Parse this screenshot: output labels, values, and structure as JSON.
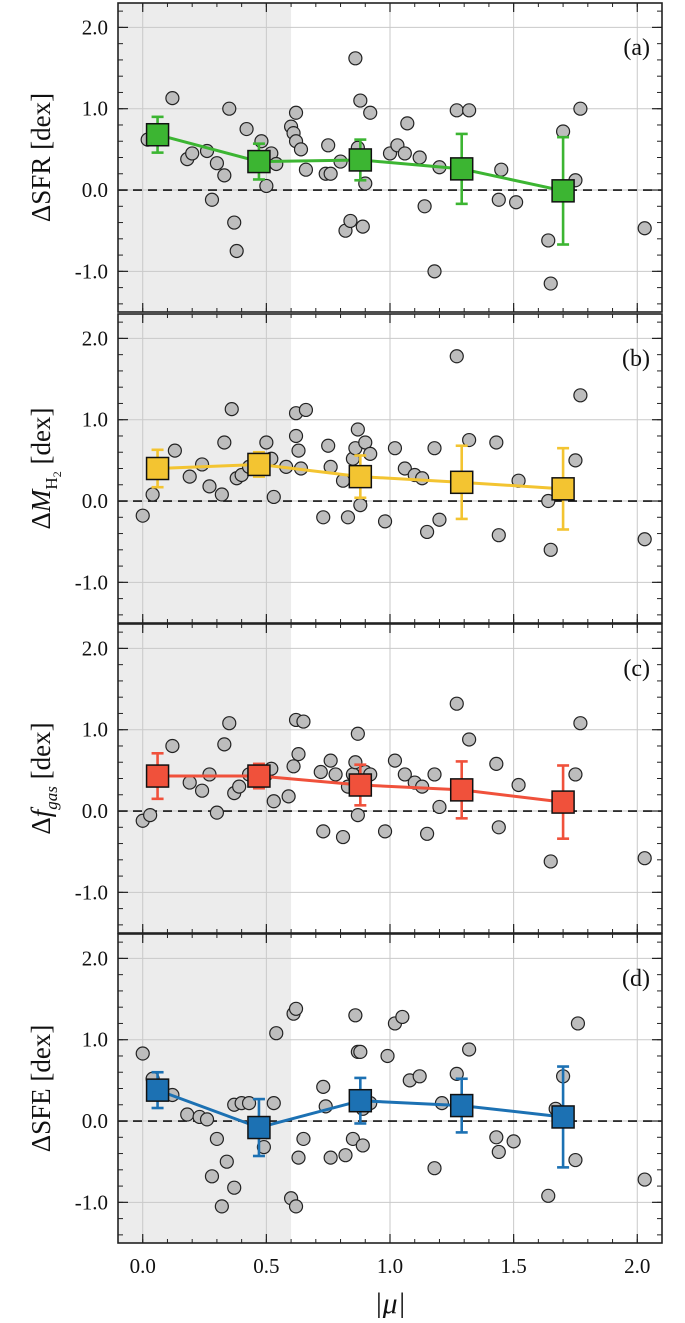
{
  "chart_data": [
    {
      "type": "scatter",
      "panel_label": "(a)",
      "ylabel": "ΔSFR [dex]",
      "xlabel": "|μ|",
      "xlim": [
        -0.1,
        2.1
      ],
      "ylim": [
        -1.5,
        2.3
      ],
      "x_ticks": [
        "0.0",
        "0.5",
        "1.0",
        "1.5",
        "2.0"
      ],
      "y_ticks": [
        "2.0",
        "1.0",
        "0.0",
        "-1.0"
      ],
      "shaded_region_x": [
        -0.1,
        0.6
      ],
      "reference_line_y": 0.0,
      "grid": true,
      "line_color": "#3cb532",
      "points": [
        [
          0.02,
          0.62
        ],
        [
          0.12,
          1.13
        ],
        [
          0.18,
          0.38
        ],
        [
          0.2,
          0.45
        ],
        [
          0.26,
          0.48
        ],
        [
          0.28,
          -0.12
        ],
        [
          0.3,
          0.33
        ],
        [
          0.33,
          0.18
        ],
        [
          0.35,
          1.0
        ],
        [
          0.37,
          -0.4
        ],
        [
          0.38,
          -0.75
        ],
        [
          0.42,
          0.75
        ],
        [
          0.48,
          0.6
        ],
        [
          0.5,
          0.05
        ],
        [
          0.52,
          0.45
        ],
        [
          0.54,
          0.32
        ],
        [
          0.6,
          0.78
        ],
        [
          0.61,
          0.7
        ],
        [
          0.62,
          0.6
        ],
        [
          0.62,
          0.95
        ],
        [
          0.64,
          0.5
        ],
        [
          0.66,
          0.25
        ],
        [
          0.74,
          0.2
        ],
        [
          0.75,
          0.55
        ],
        [
          0.76,
          0.2
        ],
        [
          0.8,
          0.35
        ],
        [
          0.82,
          -0.5
        ],
        [
          0.84,
          -0.38
        ],
        [
          0.86,
          1.62
        ],
        [
          0.87,
          0.52
        ],
        [
          0.88,
          1.1
        ],
        [
          0.89,
          -0.45
        ],
        [
          0.9,
          0.08
        ],
        [
          0.92,
          0.95
        ],
        [
          1.0,
          0.45
        ],
        [
          1.03,
          0.55
        ],
        [
          1.06,
          0.45
        ],
        [
          1.07,
          0.82
        ],
        [
          1.12,
          0.4
        ],
        [
          1.14,
          -0.2
        ],
        [
          1.18,
          -1.0
        ],
        [
          1.2,
          0.28
        ],
        [
          1.27,
          0.98
        ],
        [
          1.32,
          0.98
        ],
        [
          1.44,
          -0.12
        ],
        [
          1.45,
          0.25
        ],
        [
          1.51,
          -0.15
        ],
        [
          1.64,
          -0.62
        ],
        [
          1.65,
          -1.15
        ],
        [
          1.7,
          0.72
        ],
        [
          1.75,
          0.12
        ],
        [
          1.77,
          1.0
        ],
        [
          2.03,
          -0.47
        ]
      ],
      "binned": {
        "x": [
          0.06,
          0.47,
          0.88,
          1.29,
          1.7
        ],
        "y": [
          0.68,
          0.35,
          0.37,
          0.26,
          -0.01
        ],
        "err": [
          0.22,
          0.22,
          0.25,
          0.43,
          0.66
        ]
      }
    },
    {
      "type": "scatter",
      "panel_label": "(b)",
      "ylabel_prefix": "Δ",
      "ylabel_var": "M",
      "ylabel_sub": "H",
      "ylabel_subsub": "2",
      "ylabel_unit": "[dex]",
      "xlim": [
        -0.1,
        2.1
      ],
      "ylim": [
        -1.5,
        2.3
      ],
      "x_ticks": [
        "0.0",
        "0.5",
        "1.0",
        "1.5",
        "2.0"
      ],
      "y_ticks": [
        "2.0",
        "1.0",
        "0.0",
        "-1.0"
      ],
      "shaded_region_x": [
        -0.1,
        0.6
      ],
      "reference_line_y": 0.0,
      "grid": true,
      "line_color": "#f3c431",
      "points": [
        [
          0.0,
          -0.18
        ],
        [
          0.04,
          0.08
        ],
        [
          0.13,
          0.62
        ],
        [
          0.19,
          0.3
        ],
        [
          0.24,
          0.45
        ],
        [
          0.27,
          0.18
        ],
        [
          0.32,
          0.08
        ],
        [
          0.33,
          0.72
        ],
        [
          0.36,
          1.13
        ],
        [
          0.38,
          0.28
        ],
        [
          0.4,
          0.32
        ],
        [
          0.43,
          0.42
        ],
        [
          0.5,
          0.72
        ],
        [
          0.52,
          0.52
        ],
        [
          0.53,
          0.05
        ],
        [
          0.58,
          0.42
        ],
        [
          0.62,
          0.8
        ],
        [
          0.62,
          1.08
        ],
        [
          0.63,
          0.62
        ],
        [
          0.64,
          0.4
        ],
        [
          0.66,
          1.12
        ],
        [
          0.73,
          -0.2
        ],
        [
          0.75,
          0.68
        ],
        [
          0.76,
          0.42
        ],
        [
          0.81,
          0.25
        ],
        [
          0.83,
          -0.2
        ],
        [
          0.85,
          0.52
        ],
        [
          0.86,
          0.65
        ],
        [
          0.87,
          0.88
        ],
        [
          0.88,
          -0.05
        ],
        [
          0.9,
          0.72
        ],
        [
          0.92,
          0.58
        ],
        [
          0.98,
          -0.25
        ],
        [
          1.02,
          0.65
        ],
        [
          1.06,
          0.4
        ],
        [
          1.1,
          0.32
        ],
        [
          1.13,
          0.28
        ],
        [
          1.15,
          -0.38
        ],
        [
          1.18,
          0.65
        ],
        [
          1.2,
          -0.23
        ],
        [
          1.27,
          1.78
        ],
        [
          1.32,
          0.75
        ],
        [
          1.43,
          0.72
        ],
        [
          1.44,
          -0.42
        ],
        [
          1.52,
          0.25
        ],
        [
          1.64,
          0.0
        ],
        [
          1.65,
          -0.6
        ],
        [
          1.75,
          0.5
        ],
        [
          1.77,
          1.3
        ],
        [
          2.03,
          -0.47
        ]
      ],
      "binned": {
        "x": [
          0.06,
          0.47,
          0.88,
          1.29,
          1.7
        ],
        "y": [
          0.4,
          0.45,
          0.3,
          0.23,
          0.15
        ],
        "err": [
          0.23,
          0.15,
          0.26,
          0.45,
          0.5
        ]
      }
    },
    {
      "type": "scatter",
      "panel_label": "(c)",
      "ylabel_prefix": "Δ",
      "ylabel_var": "f",
      "ylabel_sub": "gas",
      "ylabel_unit": "[dex]",
      "xlim": [
        -0.1,
        2.1
      ],
      "ylim": [
        -1.5,
        2.3
      ],
      "x_ticks": [
        "0.0",
        "0.5",
        "1.0",
        "1.5",
        "2.0"
      ],
      "y_ticks": [
        "2.0",
        "1.0",
        "0.0",
        "-1.0"
      ],
      "shaded_region_x": [
        -0.1,
        0.6
      ],
      "reference_line_y": 0.0,
      "grid": true,
      "line_color": "#f0513b",
      "points": [
        [
          0.0,
          -0.12
        ],
        [
          0.03,
          -0.05
        ],
        [
          0.12,
          0.8
        ],
        [
          0.19,
          0.35
        ],
        [
          0.24,
          0.25
        ],
        [
          0.27,
          0.45
        ],
        [
          0.3,
          -0.02
        ],
        [
          0.33,
          0.82
        ],
        [
          0.35,
          1.08
        ],
        [
          0.37,
          0.22
        ],
        [
          0.39,
          0.3
        ],
        [
          0.43,
          0.45
        ],
        [
          0.5,
          0.45
        ],
        [
          0.52,
          0.52
        ],
        [
          0.53,
          0.12
        ],
        [
          0.59,
          0.18
        ],
        [
          0.61,
          0.55
        ],
        [
          0.62,
          1.12
        ],
        [
          0.63,
          0.7
        ],
        [
          0.65,
          1.1
        ],
        [
          0.72,
          0.48
        ],
        [
          0.73,
          -0.25
        ],
        [
          0.76,
          0.62
        ],
        [
          0.78,
          0.45
        ],
        [
          0.81,
          -0.32
        ],
        [
          0.83,
          0.3
        ],
        [
          0.85,
          0.45
        ],
        [
          0.86,
          0.6
        ],
        [
          0.87,
          0.95
        ],
        [
          0.87,
          -0.05
        ],
        [
          0.9,
          0.48
        ],
        [
          0.92,
          0.45
        ],
        [
          0.98,
          -0.25
        ],
        [
          1.02,
          0.62
        ],
        [
          1.06,
          0.45
        ],
        [
          1.1,
          0.35
        ],
        [
          1.13,
          0.3
        ],
        [
          1.15,
          -0.28
        ],
        [
          1.18,
          0.45
        ],
        [
          1.2,
          0.05
        ],
        [
          1.27,
          1.32
        ],
        [
          1.32,
          0.88
        ],
        [
          1.43,
          0.58
        ],
        [
          1.44,
          -0.2
        ],
        [
          1.52,
          0.32
        ],
        [
          1.65,
          -0.62
        ],
        [
          1.75,
          0.45
        ],
        [
          1.77,
          1.08
        ],
        [
          2.03,
          -0.58
        ]
      ],
      "binned": {
        "x": [
          0.06,
          0.47,
          0.88,
          1.29,
          1.7
        ],
        "y": [
          0.43,
          0.43,
          0.32,
          0.26,
          0.11
        ],
        "err": [
          0.28,
          0.15,
          0.25,
          0.35,
          0.45
        ]
      }
    },
    {
      "type": "scatter",
      "panel_label": "(d)",
      "ylabel": "ΔSFE [dex]",
      "xlabel": "|μ|",
      "xlim": [
        -0.1,
        2.1
      ],
      "ylim": [
        -1.5,
        2.3
      ],
      "x_ticks": [
        "0.0",
        "0.5",
        "1.0",
        "1.5",
        "2.0"
      ],
      "y_ticks": [
        "2.0",
        "1.0",
        "0.0",
        "-1.0"
      ],
      "shaded_region_x": [
        -0.1,
        0.6
      ],
      "reference_line_y": 0.0,
      "grid": true,
      "line_color": "#1c71b3",
      "points": [
        [
          0.0,
          0.83
        ],
        [
          0.04,
          0.52
        ],
        [
          0.12,
          0.32
        ],
        [
          0.18,
          0.08
        ],
        [
          0.23,
          0.05
        ],
        [
          0.26,
          0.02
        ],
        [
          0.28,
          -0.68
        ],
        [
          0.3,
          -0.22
        ],
        [
          0.32,
          -1.05
        ],
        [
          0.34,
          -0.5
        ],
        [
          0.37,
          0.2
        ],
        [
          0.37,
          -0.82
        ],
        [
          0.4,
          0.22
        ],
        [
          0.43,
          0.22
        ],
        [
          0.49,
          -0.32
        ],
        [
          0.53,
          0.22
        ],
        [
          0.54,
          1.08
        ],
        [
          0.6,
          -0.95
        ],
        [
          0.61,
          1.32
        ],
        [
          0.62,
          -1.05
        ],
        [
          0.62,
          1.38
        ],
        [
          0.63,
          -0.45
        ],
        [
          0.65,
          -0.22
        ],
        [
          0.73,
          0.42
        ],
        [
          0.74,
          0.18
        ],
        [
          0.76,
          -0.45
        ],
        [
          0.82,
          -0.42
        ],
        [
          0.85,
          -0.22
        ],
        [
          0.86,
          1.3
        ],
        [
          0.87,
          0.85
        ],
        [
          0.88,
          0.85
        ],
        [
          0.89,
          -0.3
        ],
        [
          0.89,
          0.15
        ],
        [
          0.92,
          0.22
        ],
        [
          0.99,
          0.8
        ],
        [
          1.02,
          1.2
        ],
        [
          1.05,
          1.28
        ],
        [
          1.08,
          0.5
        ],
        [
          1.12,
          0.55
        ],
        [
          1.18,
          -0.58
        ],
        [
          1.21,
          0.22
        ],
        [
          1.27,
          0.58
        ],
        [
          1.32,
          0.88
        ],
        [
          1.43,
          -0.2
        ],
        [
          1.44,
          -0.38
        ],
        [
          1.5,
          -0.25
        ],
        [
          1.64,
          -0.92
        ],
        [
          1.67,
          0.15
        ],
        [
          1.7,
          0.55
        ],
        [
          1.75,
          -0.48
        ],
        [
          1.76,
          1.2
        ],
        [
          2.03,
          -0.72
        ]
      ],
      "binned": {
        "x": [
          0.06,
          0.47,
          0.88,
          1.29,
          1.7
        ],
        "y": [
          0.38,
          -0.08,
          0.25,
          0.19,
          0.05
        ],
        "err": [
          0.22,
          0.35,
          0.28,
          0.33,
          0.62
        ]
      }
    }
  ]
}
